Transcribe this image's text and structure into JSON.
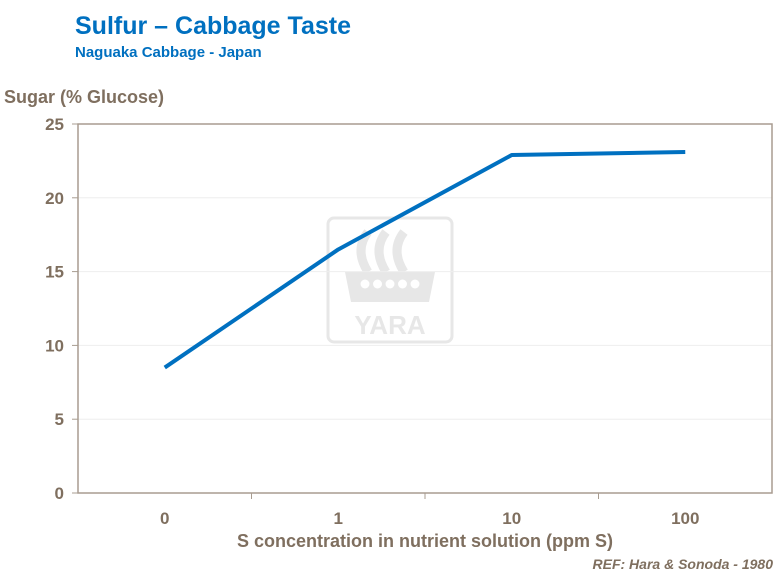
{
  "chart_data": {
    "type": "line",
    "title": "Sulfur – Cabbage Taste",
    "subtitle": "Naguaka Cabbage - Japan",
    "xlabel": "S concentration in nutrient solution (ppm S)",
    "ylabel": "Sugar (% Glucose)",
    "categories": [
      "0",
      "1",
      "10",
      "100"
    ],
    "series": [
      {
        "values": [
          8.5,
          16.5,
          22.9,
          23.1
        ],
        "color": "#0070c0"
      }
    ],
    "ylim": [
      0,
      25
    ],
    "yticks": [
      "0",
      "5",
      "10",
      "15",
      "20",
      "25"
    ],
    "grid": true,
    "reference": "REF: Hara & Sonoda - 1980",
    "watermark": "YARA"
  }
}
